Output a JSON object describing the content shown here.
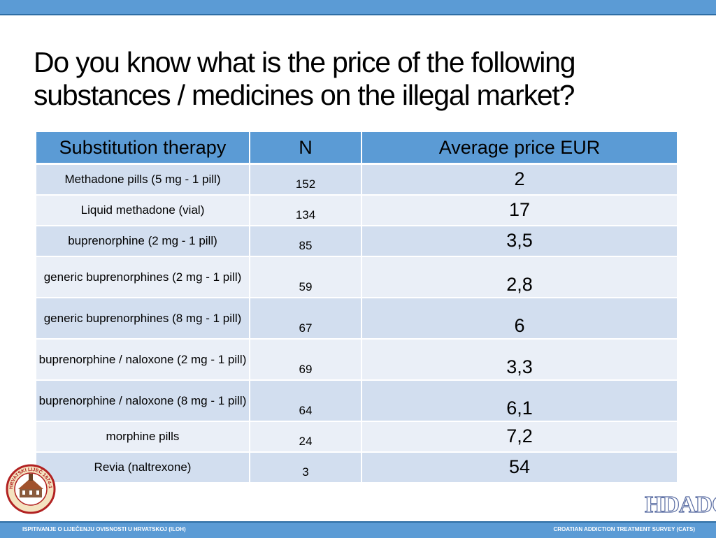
{
  "title": "Do you know what is the price of the following substances / medicines on the illegal market?",
  "table": {
    "headers": [
      "Substitution therapy",
      "N",
      "Average price EUR"
    ],
    "rows": [
      {
        "substance": "Methadone pills (5 mg - 1 pill)",
        "n": "152",
        "price": "2"
      },
      {
        "substance": "Liquid methadone (vial)",
        "n": "134",
        "price": "17"
      },
      {
        "substance": "buprenorphine (2 mg - 1 pill)",
        "n": "85",
        "price": "3,5"
      },
      {
        "substance": "generic buprenorphines (2 mg - 1 pill)",
        "n": "59",
        "price": "2,8"
      },
      {
        "substance": "generic buprenorphines (8 mg - 1 pill)",
        "n": "67",
        "price": "6"
      },
      {
        "substance": "buprenorphine / naloxone (2 mg - 1 pill)",
        "n": "69",
        "price": "3,3"
      },
      {
        "substance": "buprenorphine / naloxone (8 mg - 1 pill)",
        "n": "64",
        "price": "6,1"
      },
      {
        "substance": "morphine pills",
        "n": "24",
        "price": "7,2"
      },
      {
        "substance": "Revia (naltrexone)",
        "n": "3",
        "price": "54"
      }
    ]
  },
  "logos": {
    "right_text": "HDADO",
    "left_seal_text": "HRVATSKI LIJEČ 1874-1924"
  },
  "footer": {
    "left": "ISPITIVANJE O LIJEČENJU OVISNOSTI U HRVATSKOJ (ILOH)",
    "right": "CROATIAN ADDICTION TREATMENT SURVEY (CATS)"
  },
  "colors": {
    "accent": "#5b9bd5",
    "row_dark": "#d2deef",
    "row_light": "#eaeff7"
  }
}
